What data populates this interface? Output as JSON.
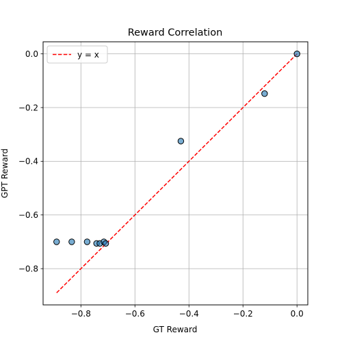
{
  "chart_data": {
    "type": "scatter",
    "title": "Reward Correlation",
    "xlabel": "GT Reward",
    "ylabel": "GPT Reward",
    "xlim": [
      -0.94,
      0.04
    ],
    "ylim": [
      -0.935,
      0.045
    ],
    "grid": true,
    "x_ticks": [
      -0.8,
      -0.6,
      -0.4,
      -0.2,
      0.0
    ],
    "x_tick_labels": [
      "−0.8",
      "−0.6",
      "−0.4",
      "−0.2",
      "0.0"
    ],
    "y_ticks": [
      0.0,
      -0.2,
      -0.4,
      -0.6,
      -0.8
    ],
    "y_tick_labels": [
      "0.0",
      "−0.2",
      "−0.4",
      "−0.6",
      "−0.8"
    ],
    "series": [
      {
        "type": "scatter",
        "color": "#1f77b4",
        "x": [
          -0.89,
          -0.834,
          -0.777,
          -0.742,
          -0.73,
          -0.715,
          -0.708,
          -0.43,
          -0.12,
          0.0
        ],
        "y": [
          -0.7,
          -0.7,
          -0.7,
          -0.706,
          -0.706,
          -0.7,
          -0.706,
          -0.325,
          -0.148,
          0.0
        ]
      },
      {
        "name": "y = x",
        "type": "line",
        "style": "dashed",
        "color": "#ff0000",
        "x": [
          -0.89,
          0.0
        ],
        "y": [
          -0.89,
          0.0
        ]
      }
    ],
    "legend": {
      "position": "top-left"
    }
  }
}
